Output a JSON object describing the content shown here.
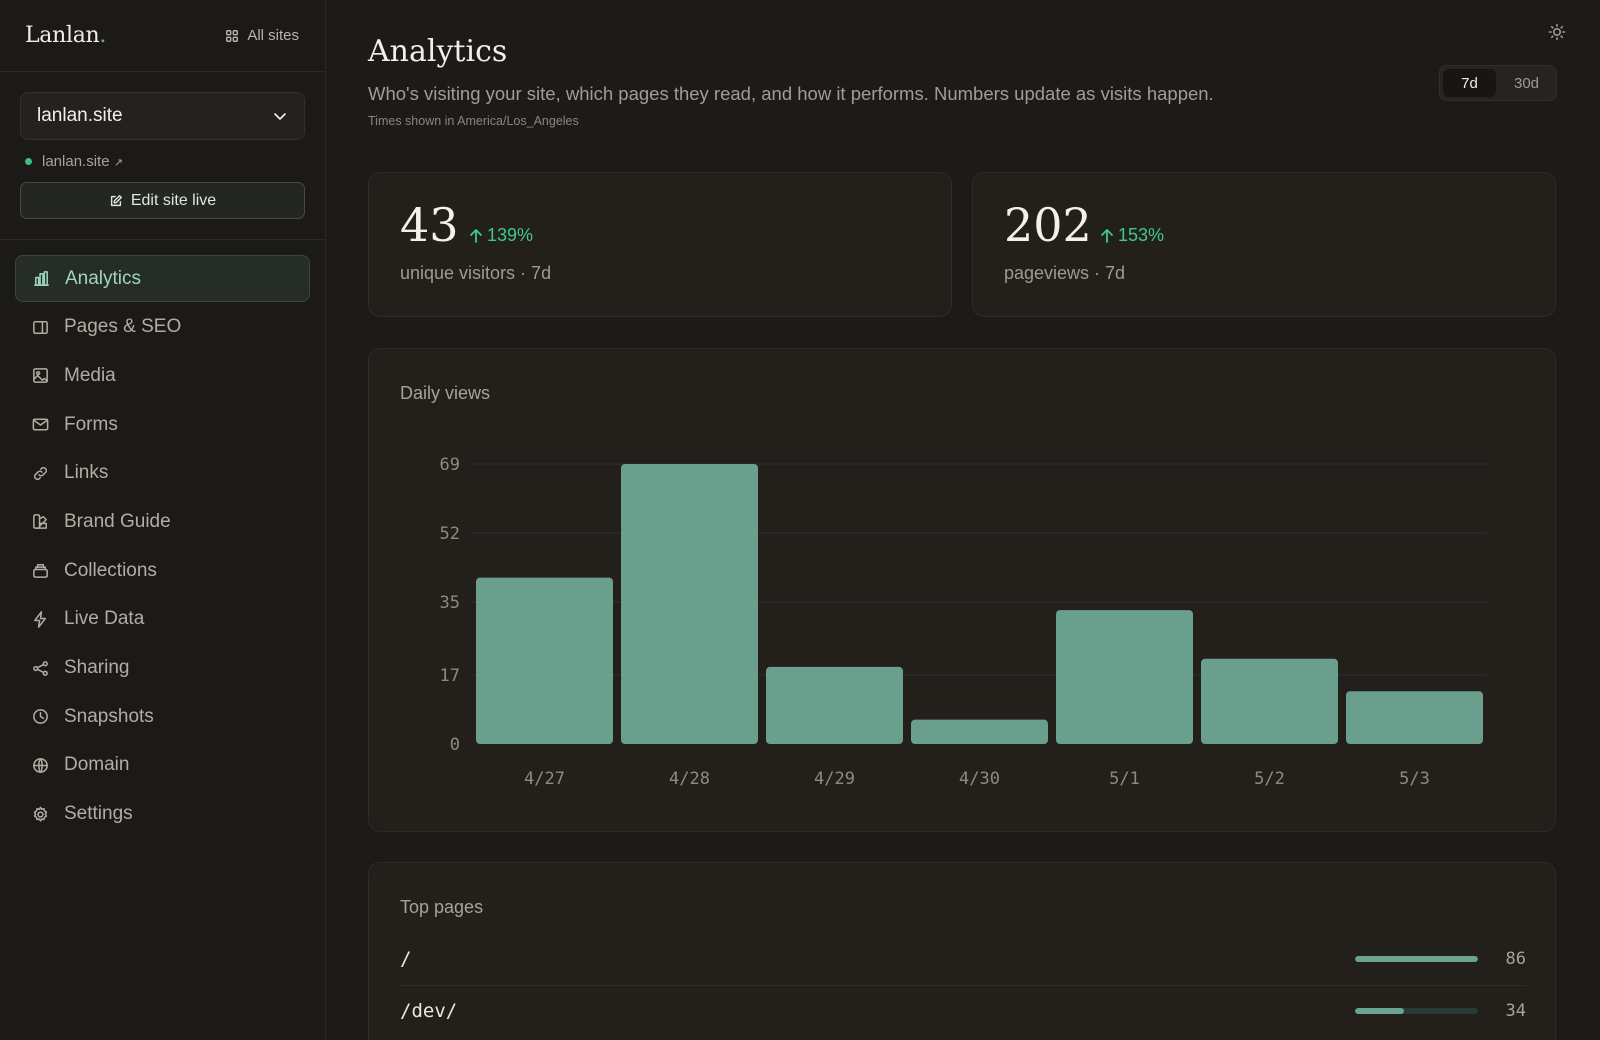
{
  "brand": {
    "name": "Lanlan",
    "dot": "."
  },
  "topbar": {
    "all_sites_label": "All sites"
  },
  "site": {
    "selected": "lanlan.site",
    "link_label": "lanlan.site",
    "link_arrow": "↗",
    "edit_live_label": "Edit site live"
  },
  "sidebar": {
    "items": [
      {
        "label": "Analytics",
        "icon": "bar-chart-icon",
        "active": true
      },
      {
        "label": "Pages & SEO",
        "icon": "page-icon",
        "active": false
      },
      {
        "label": "Media",
        "icon": "image-icon",
        "active": false
      },
      {
        "label": "Forms",
        "icon": "mail-icon",
        "active": false
      },
      {
        "label": "Links",
        "icon": "link-icon",
        "active": false
      },
      {
        "label": "Brand Guide",
        "icon": "palette-icon",
        "active": false
      },
      {
        "label": "Collections",
        "icon": "stack-icon",
        "active": false
      },
      {
        "label": "Live Data",
        "icon": "bolt-icon",
        "active": false
      },
      {
        "label": "Sharing",
        "icon": "share-icon",
        "active": false
      },
      {
        "label": "Snapshots",
        "icon": "clock-icon",
        "active": false
      },
      {
        "label": "Domain",
        "icon": "globe-icon",
        "active": false
      },
      {
        "label": "Settings",
        "icon": "gear-icon",
        "active": false
      }
    ]
  },
  "header": {
    "title": "Analytics",
    "description": "Who's visiting your site, which pages they read, and how it performs. Numbers update as visits happen.",
    "timezone": "Times shown in America/Los_Angeles",
    "range_tabs": [
      {
        "label": "7d",
        "active": true
      },
      {
        "label": "30d",
        "active": false
      }
    ]
  },
  "stats": [
    {
      "value": "43",
      "delta": "139%",
      "label": "unique visitors · 7d"
    },
    {
      "value": "202",
      "delta": "153%",
      "label": "pageviews · 7d"
    }
  ],
  "colors": {
    "accent": "#6fa793",
    "positive": "#3fc88a",
    "bar": "#6fa793"
  },
  "chart_data": {
    "type": "bar",
    "title": "Daily views",
    "categories": [
      "4/27",
      "4/28",
      "4/29",
      "4/30",
      "5/1",
      "5/2",
      "5/3"
    ],
    "values": [
      41,
      69,
      19,
      6,
      33,
      21,
      13
    ],
    "yticks": [
      0,
      17,
      35,
      52,
      69
    ],
    "ylim": [
      0,
      69
    ],
    "grid": true
  },
  "top_pages": {
    "title": "Top pages",
    "rows": [
      {
        "path": "/",
        "count": "86",
        "share": 1.0
      },
      {
        "path": "/dev/",
        "count": "34",
        "share": 0.4
      }
    ]
  }
}
